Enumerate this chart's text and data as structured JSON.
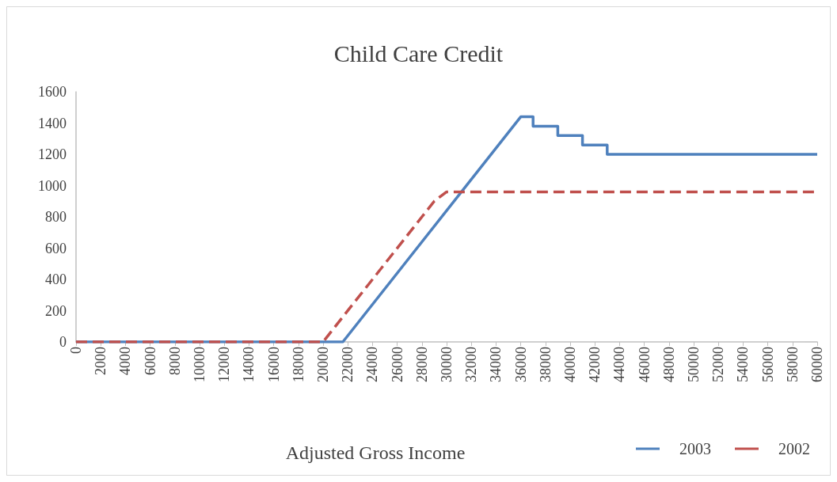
{
  "chart_data": {
    "type": "line",
    "title": "Child Care Credit",
    "xlabel": "Adjusted Gross Income",
    "xlim": [
      0,
      60000
    ],
    "xticks": [
      0,
      2000,
      4000,
      6000,
      8000,
      10000,
      12000,
      14000,
      16000,
      18000,
      20000,
      22000,
      24000,
      26000,
      28000,
      30000,
      32000,
      34000,
      36000,
      38000,
      40000,
      42000,
      44000,
      46000,
      48000,
      50000,
      52000,
      54000,
      56000,
      58000,
      60000
    ],
    "ylim": [
      0,
      1600
    ],
    "yticks": [
      0,
      200,
      400,
      600,
      800,
      1000,
      1200,
      1400,
      1600
    ],
    "grid": false,
    "legend": "bottom right",
    "marker": "none",
    "series": [
      {
        "name": "2003",
        "color": "#4f81bd",
        "line_style": "solid",
        "x": [
          0,
          21600,
          36000,
          37000,
          37000,
          39000,
          39000,
          41000,
          41000,
          43000,
          43000,
          60000
        ],
        "values": [
          0,
          0,
          1440,
          1440,
          1380,
          1380,
          1320,
          1320,
          1260,
          1260,
          1200,
          1200
        ]
      },
      {
        "name": "2002",
        "color": "#c0504d",
        "line_style": "dashed",
        "x": [
          0,
          20000,
          28000,
          29000,
          30000,
          60000
        ],
        "values": [
          0,
          0,
          800,
          900,
          960,
          960
        ]
      }
    ]
  }
}
